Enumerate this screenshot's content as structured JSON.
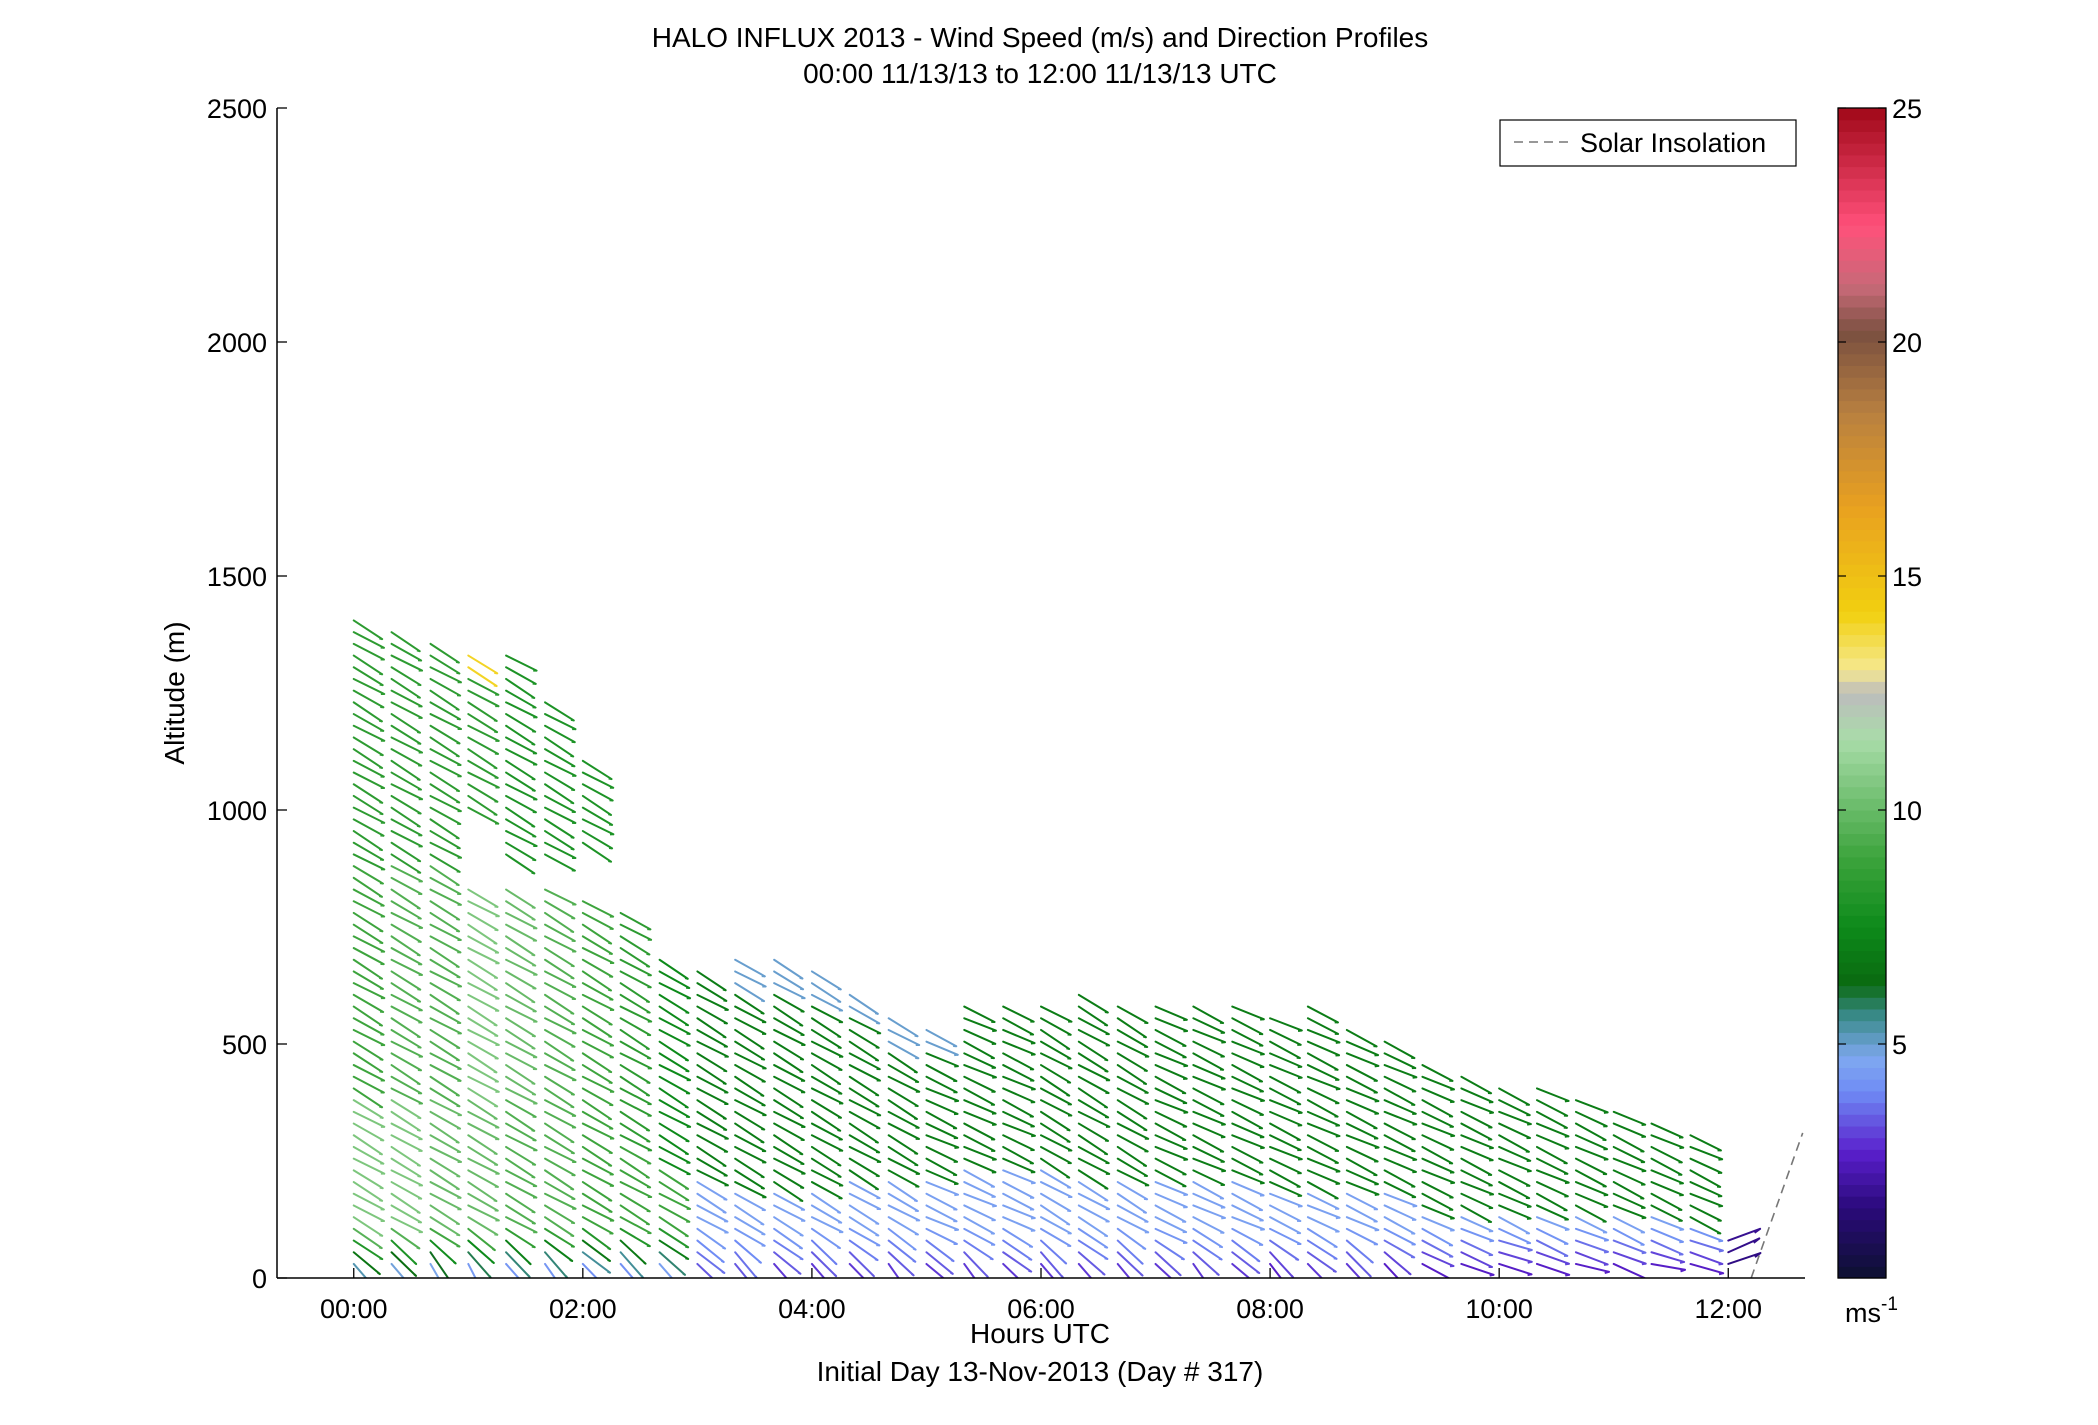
{
  "chart_data": {
    "type": "wind-barb-profile",
    "title": "HALO INFLUX 2013 - Wind Speed (m/s) and Direction Profiles",
    "subtitle": "00:00 11/13/13 to 12:00 11/13/13  UTC",
    "xlabel": "Hours UTC",
    "xlabel2": "Initial Day 13-Nov-2013 (Day # 317)",
    "ylabel": "Altitude (m)",
    "xlim": [
      -0.67,
      12.67
    ],
    "ylim": [
      0,
      2500
    ],
    "x_ticks": [
      {
        "v": 0,
        "label": "00:00"
      },
      {
        "v": 2,
        "label": "02:00"
      },
      {
        "v": 4,
        "label": "04:00"
      },
      {
        "v": 6,
        "label": "06:00"
      },
      {
        "v": 8,
        "label": "08:00"
      },
      {
        "v": 10,
        "label": "10:00"
      },
      {
        "v": 12,
        "label": "12:00"
      }
    ],
    "y_ticks": [
      {
        "v": 0,
        "label": "0"
      },
      {
        "v": 500,
        "label": "500"
      },
      {
        "v": 1000,
        "label": "1000"
      },
      {
        "v": 1500,
        "label": "1500"
      },
      {
        "v": 2000,
        "label": "2000"
      },
      {
        "v": 2500,
        "label": "2500"
      }
    ],
    "legend": {
      "label": "Solar Insolation",
      "placement": "top-right",
      "style": "dashed",
      "color": "#777777"
    },
    "colorbar": {
      "min": 0,
      "max": 25,
      "ticks": [
        {
          "v": 5,
          "label": "5"
        },
        {
          "v": 10,
          "label": "10"
        },
        {
          "v": 15,
          "label": "15"
        },
        {
          "v": 20,
          "label": "20"
        },
        {
          "v": 25,
          "label": "25"
        }
      ],
      "unit": "ms",
      "unit_exp": "-1",
      "stops": [
        {
          "v": 0,
          "c": "#0c1030"
        },
        {
          "v": 1.5,
          "c": "#2a0a7a"
        },
        {
          "v": 2.7,
          "c": "#5a1fcc"
        },
        {
          "v": 4.0,
          "c": "#6f8cf5"
        },
        {
          "v": 4.7,
          "c": "#7fa8f0"
        },
        {
          "v": 5.6,
          "c": "#3a8a8a"
        },
        {
          "v": 6.3,
          "c": "#0a6a10"
        },
        {
          "v": 7.5,
          "c": "#0d8a1a"
        },
        {
          "v": 9.0,
          "c": "#3da43d"
        },
        {
          "v": 11.5,
          "c": "#a8dca8"
        },
        {
          "v": 12.5,
          "c": "#bcbcbc"
        },
        {
          "v": 13.0,
          "c": "#f5e890"
        },
        {
          "v": 14.2,
          "c": "#f2d010"
        },
        {
          "v": 16.5,
          "c": "#e8a020"
        },
        {
          "v": 18.5,
          "c": "#b88040"
        },
        {
          "v": 20.2,
          "c": "#7a5040"
        },
        {
          "v": 21.2,
          "c": "#c86a78"
        },
        {
          "v": 22.5,
          "c": "#ff507a"
        },
        {
          "v": 25,
          "c": "#a00818"
        }
      ]
    },
    "solar_insolation": [
      [
        12.2,
        0
      ],
      [
        12.65,
        310
      ]
    ],
    "bin_spacing_m": 25,
    "profiles": [
      {
        "t": 0.0,
        "top": 1410,
        "gap": null,
        "low_speed": 3.5,
        "dir_top": 300,
        "dir_low": 320,
        "seg": [
          [
            0,
            400,
            10.5
          ],
          [
            400,
            900,
            9.0
          ],
          [
            900,
            1410,
            8.5
          ]
        ]
      },
      {
        "t": 0.33,
        "top": 1400,
        "gap": null,
        "low_speed": 3.0,
        "dir_top": 300,
        "dir_low": 330,
        "seg": [
          [
            0,
            400,
            10.5
          ],
          [
            400,
            900,
            9.5
          ],
          [
            900,
            1400,
            8.5
          ]
        ]
      },
      {
        "t": 0.67,
        "top": 1370,
        "gap": null,
        "low_speed": 3.0,
        "dir_top": 300,
        "dir_low": 340,
        "seg": [
          [
            0,
            400,
            10.0
          ],
          [
            400,
            900,
            9.5
          ],
          [
            900,
            1370,
            8.5
          ]
        ]
      },
      {
        "t": 1.0,
        "top": 1350,
        "gap": [
          840,
          1000
        ],
        "low_speed": 2.5,
        "dir_top": 300,
        "dir_low": 340,
        "seg": [
          [
            0,
            400,
            10.0
          ],
          [
            400,
            840,
            10.5
          ],
          [
            1000,
            1300,
            8.5
          ],
          [
            1300,
            1350,
            14.0
          ]
        ]
      },
      {
        "t": 1.33,
        "top": 1330,
        "gap": [
          830,
          900
        ],
        "low_speed": 2.5,
        "dir_top": 300,
        "dir_low": 330,
        "seg": [
          [
            0,
            400,
            9.5
          ],
          [
            400,
            830,
            10.0
          ],
          [
            900,
            1330,
            8.0
          ]
        ]
      },
      {
        "t": 1.67,
        "top": 1240,
        "gap": [
          830,
          890
        ],
        "low_speed": 2.5,
        "dir_top": 300,
        "dir_low": 330,
        "seg": [
          [
            0,
            400,
            9.5
          ],
          [
            400,
            830,
            9.5
          ],
          [
            890,
            1240,
            8.0
          ]
        ]
      },
      {
        "t": 2.0,
        "top": 1110,
        "gap": [
          810,
          930
        ],
        "low_speed": 2.5,
        "dir_top": 300,
        "dir_low": 320,
        "seg": [
          [
            0,
            400,
            9.0
          ],
          [
            400,
            810,
            9.0
          ],
          [
            930,
            1110,
            8.0
          ]
        ]
      },
      {
        "t": 2.33,
        "top": 790,
        "gap": null,
        "low_speed": 2.5,
        "dir_top": 300,
        "dir_low": 330,
        "seg": [
          [
            0,
            300,
            9.0
          ],
          [
            300,
            790,
            8.5
          ]
        ]
      },
      {
        "t": 2.67,
        "top": 690,
        "gap": null,
        "low_speed": 3.0,
        "dir_top": 300,
        "dir_low": 320,
        "seg": [
          [
            0,
            250,
            9.0
          ],
          [
            250,
            690,
            7.5
          ]
        ]
      },
      {
        "t": 3.0,
        "top": 670,
        "gap": null,
        "low_speed": 3.0,
        "dir_top": 300,
        "dir_low": 320,
        "seg": [
          [
            0,
            220,
            4.5
          ],
          [
            220,
            670,
            7.0
          ]
        ]
      },
      {
        "t": 3.33,
        "top": 700,
        "gap": null,
        "low_speed": 3.0,
        "dir_top": 300,
        "dir_low": 330,
        "seg": [
          [
            0,
            200,
            4.5
          ],
          [
            200,
            620,
            7.0
          ],
          [
            620,
            700,
            5.0
          ]
        ]
      },
      {
        "t": 3.67,
        "top": 690,
        "gap": null,
        "low_speed": 2.5,
        "dir_top": 300,
        "dir_low": 320,
        "seg": [
          [
            0,
            200,
            4.5
          ],
          [
            200,
            620,
            7.0
          ],
          [
            620,
            690,
            5.0
          ]
        ]
      },
      {
        "t": 4.0,
        "top": 660,
        "gap": null,
        "low_speed": 2.5,
        "dir_top": 300,
        "dir_low": 330,
        "seg": [
          [
            0,
            200,
            4.5
          ],
          [
            200,
            600,
            7.0
          ],
          [
            600,
            660,
            5.0
          ]
        ]
      },
      {
        "t": 4.33,
        "top": 620,
        "gap": null,
        "low_speed": 2.5,
        "dir_top": 300,
        "dir_low": 320,
        "seg": [
          [
            0,
            220,
            4.5
          ],
          [
            220,
            560,
            7.0
          ],
          [
            560,
            620,
            5.0
          ]
        ]
      },
      {
        "t": 4.67,
        "top": 560,
        "gap": null,
        "low_speed": 2.5,
        "dir_top": 300,
        "dir_low": 330,
        "seg": [
          [
            0,
            220,
            4.5
          ],
          [
            220,
            500,
            7.0
          ],
          [
            500,
            560,
            5.0
          ]
        ]
      },
      {
        "t": 5.0,
        "top": 540,
        "gap": null,
        "low_speed": 2.5,
        "dir_top": 295,
        "dir_low": 320,
        "seg": [
          [
            0,
            220,
            4.5
          ],
          [
            220,
            480,
            7.0
          ],
          [
            480,
            540,
            5.0
          ]
        ]
      },
      {
        "t": 5.33,
        "top": 580,
        "gap": null,
        "low_speed": 2.5,
        "dir_top": 295,
        "dir_low": 330,
        "seg": [
          [
            0,
            250,
            4.5
          ],
          [
            250,
            580,
            7.0
          ]
        ]
      },
      {
        "t": 5.67,
        "top": 580,
        "gap": null,
        "low_speed": 2.5,
        "dir_top": 295,
        "dir_low": 320,
        "seg": [
          [
            0,
            250,
            4.5
          ],
          [
            250,
            580,
            7.0
          ]
        ]
      },
      {
        "t": 6.0,
        "top": 590,
        "gap": null,
        "low_speed": 2.5,
        "dir_top": 300,
        "dir_low": 330,
        "seg": [
          [
            0,
            230,
            4.5
          ],
          [
            230,
            590,
            7.0
          ]
        ]
      },
      {
        "t": 6.33,
        "top": 610,
        "gap": null,
        "low_speed": 2.5,
        "dir_top": 300,
        "dir_low": 320,
        "seg": [
          [
            0,
            220,
            4.5
          ],
          [
            220,
            610,
            7.0
          ]
        ]
      },
      {
        "t": 6.67,
        "top": 600,
        "gap": null,
        "low_speed": 2.5,
        "dir_top": 300,
        "dir_low": 330,
        "seg": [
          [
            0,
            220,
            4.5
          ],
          [
            220,
            600,
            7.0
          ]
        ]
      },
      {
        "t": 7.0,
        "top": 590,
        "gap": null,
        "low_speed": 2.5,
        "dir_top": 295,
        "dir_low": 320,
        "seg": [
          [
            0,
            220,
            4.5
          ],
          [
            220,
            590,
            7.0
          ]
        ]
      },
      {
        "t": 7.33,
        "top": 590,
        "gap": null,
        "low_speed": 2.5,
        "dir_top": 295,
        "dir_low": 330,
        "seg": [
          [
            0,
            220,
            4.5
          ],
          [
            220,
            590,
            7.0
          ]
        ]
      },
      {
        "t": 7.67,
        "top": 590,
        "gap": null,
        "low_speed": 2.5,
        "dir_top": 295,
        "dir_low": 320,
        "seg": [
          [
            0,
            220,
            4.5
          ],
          [
            220,
            590,
            7.0
          ]
        ]
      },
      {
        "t": 8.0,
        "top": 570,
        "gap": null,
        "low_speed": 2.0,
        "dir_top": 295,
        "dir_low": 330,
        "seg": [
          [
            0,
            200,
            4.5
          ],
          [
            200,
            570,
            7.0
          ]
        ]
      },
      {
        "t": 8.33,
        "top": 590,
        "gap": null,
        "low_speed": 2.5,
        "dir_top": 295,
        "dir_low": 320,
        "seg": [
          [
            0,
            200,
            4.5
          ],
          [
            200,
            590,
            7.0
          ]
        ]
      },
      {
        "t": 8.67,
        "top": 550,
        "gap": null,
        "low_speed": 2.5,
        "dir_top": 295,
        "dir_low": 330,
        "seg": [
          [
            0,
            200,
            4.5
          ],
          [
            200,
            550,
            7.0
          ]
        ]
      },
      {
        "t": 9.0,
        "top": 510,
        "gap": null,
        "low_speed": 2.0,
        "dir_top": 295,
        "dir_low": 320,
        "seg": [
          [
            0,
            200,
            4.5
          ],
          [
            200,
            510,
            7.0
          ]
        ]
      },
      {
        "t": 9.33,
        "top": 460,
        "gap": null,
        "low_speed": 2.0,
        "dir_top": 295,
        "dir_low": 300,
        "seg": [
          [
            0,
            150,
            4.5
          ],
          [
            150,
            460,
            7.0
          ]
        ]
      },
      {
        "t": 9.67,
        "top": 440,
        "gap": null,
        "low_speed": 2.0,
        "dir_top": 295,
        "dir_low": 290,
        "seg": [
          [
            0,
            150,
            4.5
          ],
          [
            150,
            440,
            7.0
          ]
        ]
      },
      {
        "t": 10.0,
        "top": 420,
        "gap": null,
        "low_speed": 2.0,
        "dir_top": 295,
        "dir_low": 280,
        "seg": [
          [
            0,
            150,
            4.5
          ],
          [
            150,
            420,
            7.0
          ]
        ]
      },
      {
        "t": 10.33,
        "top": 410,
        "gap": null,
        "low_speed": 2.0,
        "dir_top": 295,
        "dir_low": 290,
        "seg": [
          [
            0,
            150,
            4.5
          ],
          [
            150,
            410,
            7.0
          ]
        ]
      },
      {
        "t": 10.67,
        "top": 400,
        "gap": null,
        "low_speed": 2.0,
        "dir_top": 295,
        "dir_low": 280,
        "seg": [
          [
            0,
            130,
            4.5
          ],
          [
            130,
            400,
            7.0
          ]
        ]
      },
      {
        "t": 11.0,
        "top": 370,
        "gap": null,
        "low_speed": 2.0,
        "dir_top": 295,
        "dir_low": 290,
        "seg": [
          [
            0,
            130,
            4.5
          ],
          [
            130,
            370,
            7.0
          ]
        ]
      },
      {
        "t": 11.33,
        "top": 350,
        "gap": null,
        "low_speed": 2.0,
        "dir_top": 295,
        "dir_low": 280,
        "seg": [
          [
            0,
            130,
            4.5
          ],
          [
            130,
            350,
            7.0
          ]
        ]
      },
      {
        "t": 11.67,
        "top": 320,
        "gap": null,
        "low_speed": 2.0,
        "dir_top": 295,
        "dir_low": 280,
        "seg": [
          [
            0,
            120,
            4.5
          ],
          [
            120,
            320,
            7.0
          ]
        ]
      },
      {
        "t": 12.0,
        "top": 80,
        "gap": null,
        "low_speed": 1.5,
        "dir_top": 250,
        "dir_low": 250,
        "seg": [
          [
            0,
            80,
            2.0
          ]
        ]
      }
    ]
  }
}
